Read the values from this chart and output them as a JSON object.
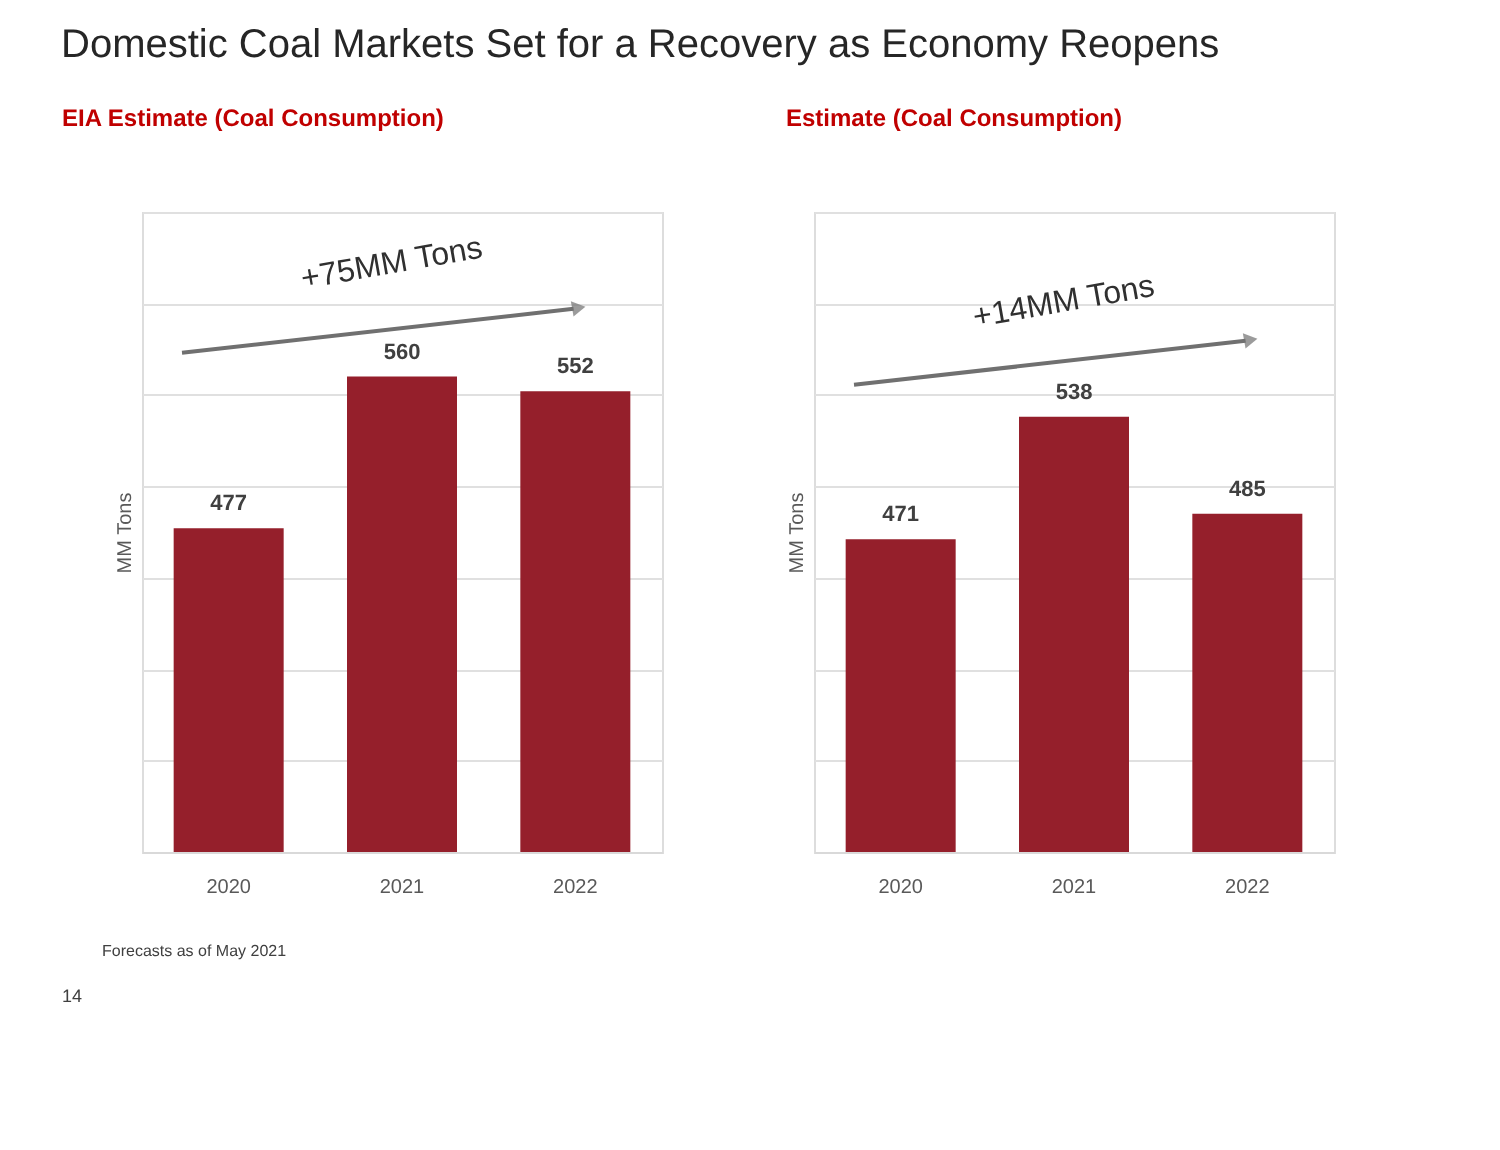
{
  "chart_data": [
    {
      "type": "bar",
      "title": "Domestic Coal Markets Set for a Recovery as Economy Reopens",
      "subtitle": "EIA Estimate (Coal Consumption)",
      "ylabel": "MM Tons",
      "categories": [
        "2020",
        "2021",
        "2022"
      ],
      "values": [
        477,
        560,
        552
      ],
      "color": "#951f2b",
      "data_labels": true,
      "ylim": [
        300,
        650
      ],
      "yticks": [
        300,
        350,
        400,
        450,
        500,
        550,
        600,
        650
      ],
      "tick_labels": "x",
      "grid": "y",
      "annotations": [
        "+75MM Tons",
        "Forecasts as of May 2021",
        "14"
      ]
    },
    {
      "type": "bar",
      "subtitle": "Estimate (Coal Consumption)",
      "ylabel": "MM Tons",
      "categories": [
        "2020",
        "2021",
        "2022"
      ],
      "values": [
        471,
        538,
        485
      ],
      "color": "#951f2b",
      "data_labels": true,
      "ylim": [
        300,
        650
      ],
      "yticks": [
        300,
        350,
        400,
        450,
        500,
        550,
        600,
        650
      ],
      "tick_labels": "x",
      "grid": "y",
      "annotations": [
        "+14MM Tons"
      ]
    }
  ]
}
